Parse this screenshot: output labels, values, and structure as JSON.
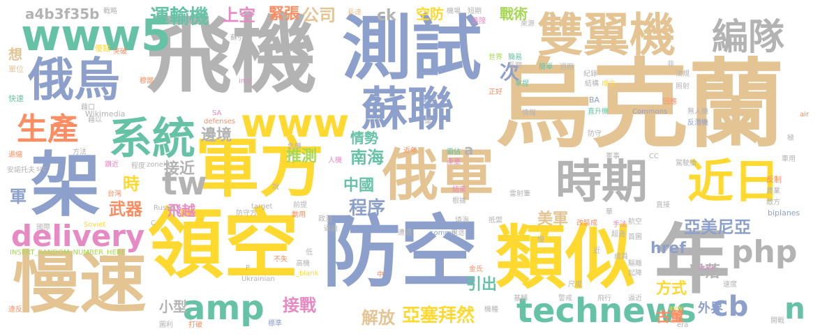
{
  "palette": {
    "green": "#66c2a5",
    "orange": "#fc8d62",
    "blue": "#8da0cb",
    "pink": "#e78ac3",
    "lime": "#a6d854",
    "yellow": "#ffd92f",
    "tan": "#e5c494",
    "gray": "#b3b3b3"
  },
  "words": [
    {
      "text": "飛機",
      "color": "gray"
    },
    {
      "text": "烏克蘭",
      "color": "tan"
    },
    {
      "text": "測試",
      "color": "blue"
    },
    {
      "text": "領空",
      "color": "yellow"
    },
    {
      "text": "防空",
      "color": "blue"
    },
    {
      "text": "類似",
      "color": "yellow"
    },
    {
      "text": "慢速",
      "color": "tan"
    },
    {
      "text": "軍方",
      "color": "yellow"
    },
    {
      "text": "俄軍",
      "color": "tan"
    },
    {
      "text": "年",
      "color": "gray"
    },
    {
      "text": "雙翼機",
      "color": "tan"
    },
    {
      "text": "俄烏",
      "color": "blue"
    },
    {
      "text": "www5",
      "color": "green"
    },
    {
      "text": "蘇聯",
      "color": "blue"
    },
    {
      "text": "架",
      "color": "blue"
    },
    {
      "text": "時期",
      "color": "gray"
    },
    {
      "text": "編隊",
      "color": "gray"
    },
    {
      "text": "系統",
      "color": "green"
    },
    {
      "text": "近日",
      "color": "yellow"
    },
    {
      "text": "www",
      "color": "yellow"
    },
    {
      "text": "tw",
      "color": "gray"
    },
    {
      "text": "生產",
      "color": "orange"
    },
    {
      "text": "technews",
      "color": "green"
    },
    {
      "text": "amp",
      "color": "green"
    },
    {
      "text": "delivery",
      "color": "pink"
    },
    {
      "text": "php",
      "color": "gray"
    },
    {
      "text": "cb",
      "color": "blue"
    },
    {
      "text": "n",
      "color": "green"
    },
    {
      "text": "運輸機",
      "color": "green"
    },
    {
      "text": "上空",
      "color": "pink"
    },
    {
      "text": "緊張",
      "color": "orange"
    },
    {
      "text": "公司",
      "color": "tan"
    },
    {
      "text": "ck",
      "color": "gray"
    },
    {
      "text": "a4b3f35b",
      "color": "gray"
    },
    {
      "text": "空防",
      "color": "yellow"
    },
    {
      "text": "戰術",
      "color": "lime"
    },
    {
      "text": "次",
      "color": "blue"
    },
    {
      "text": "邊境",
      "color": "gray"
    },
    {
      "text": "情勢",
      "color": "green"
    },
    {
      "text": "南海",
      "color": "green"
    },
    {
      "text": "推測",
      "color": "lime"
    },
    {
      "text": "接近",
      "color": "gray"
    },
    {
      "text": "時",
      "color": "yellow"
    },
    {
      "text": "中國",
      "color": "green"
    },
    {
      "text": "程序",
      "color": "blue"
    },
    {
      "text": "武器",
      "color": "orange"
    },
    {
      "text": "飛越",
      "color": "pink"
    },
    {
      "text": "美軍",
      "color": "tan"
    },
    {
      "text": "亞美尼亞",
      "color": "blue"
    },
    {
      "text": "href",
      "color": "blue"
    },
    {
      "text": "擊落",
      "color": "gray"
    },
    {
      "text": "方式",
      "color": "yellow"
    },
    {
      "text": "小型",
      "color": "gray"
    },
    {
      "text": "接戰",
      "color": "pink"
    },
    {
      "text": "引出",
      "color": "green"
    },
    {
      "text": "解放",
      "color": "tan"
    },
    {
      "text": "亞塞拜然",
      "color": "yellow"
    },
    {
      "text": "古董",
      "color": "orange"
    },
    {
      "text": "外界",
      "color": "blue"
    },
    {
      "text": "軍",
      "color": "blue"
    },
    {
      "text": "a",
      "color": "gray"
    },
    {
      "text": "想",
      "color": "tan"
    },
    {
      "text": "Wikimedia",
      "color": "gray"
    },
    {
      "text": "defenses",
      "color": "orange"
    },
    {
      "text": "Commons",
      "color": "blue"
    },
    {
      "text": "biplanes",
      "color": "blue"
    },
    {
      "text": "Russia",
      "color": "gray"
    },
    {
      "text": "target",
      "color": "gray"
    },
    {
      "text": "Soviet",
      "color": "yellow"
    },
    {
      "text": "Ukrainian",
      "color": "gray"
    },
    {
      "text": "INSERT_RANDOM_NUMBER_HERE",
      "color": "lime"
    },
    {
      "text": "_blank",
      "color": "yellow"
    },
    {
      "text": "zoneid",
      "color": "gray"
    },
    {
      "text": "src",
      "color": "gray"
    },
    {
      "text": "img",
      "color": "pink"
    },
    {
      "text": "commo",
      "color": "blue"
    },
    {
      "text": "draw",
      "color": "pink"
    },
    {
      "text": "avw",
      "color": "yellow"
    },
    {
      "text": "era",
      "color": "gray"
    },
    {
      "text": "air",
      "color": "orange"
    },
    {
      "text": "BA",
      "color": "blue"
    },
    {
      "text": "CC",
      "color": "gray"
    },
    {
      "text": "SA",
      "color": "pink"
    },
    {
      "text": "戰略",
      "color": "gray"
    },
    {
      "text": "優點",
      "color": "yellow"
    },
    {
      "text": "單位",
      "color": "tan"
    },
    {
      "text": "快速",
      "color": "green"
    },
    {
      "text": "穆部",
      "color": "orange"
    },
    {
      "text": "藉以",
      "color": "gray"
    },
    {
      "text": "藉口",
      "color": "gray"
    },
    {
      "text": "突破",
      "color": "orange"
    },
    {
      "text": "長達",
      "color": "tan"
    },
    {
      "text": "機場",
      "color": "gray"
    },
    {
      "text": "短期",
      "color": "gray"
    },
    {
      "text": "造隍",
      "color": "pink"
    },
    {
      "text": "來源",
      "color": "gray"
    },
    {
      "text": "世界",
      "color": "lime"
    },
    {
      "text": "簡易",
      "color": "green"
    },
    {
      "text": "長期",
      "color": "gray"
    },
    {
      "text": "簡單",
      "color": "green"
    },
    {
      "text": "週期",
      "color": "gray"
    },
    {
      "text": "紀錄",
      "color": "gray"
    },
    {
      "text": "法規",
      "color": "gray"
    },
    {
      "text": "照射",
      "color": "gray"
    },
    {
      "text": "成立",
      "color": "yellow"
    },
    {
      "text": "結構",
      "color": "gray"
    },
    {
      "text": "拿捏",
      "color": "green"
    },
    {
      "text": "正好",
      "color": "orange"
    },
    {
      "text": "戰爭",
      "color": "blue"
    },
    {
      "text": "情報",
      "color": "gray"
    },
    {
      "text": "直升機",
      "color": "green"
    },
    {
      "text": "回應",
      "color": "orange"
    },
    {
      "text": "無人機",
      "color": "gray"
    },
    {
      "text": "反潛機",
      "color": "blue"
    },
    {
      "text": "運",
      "color": "gray"
    },
    {
      "text": "防守",
      "color": "gray"
    },
    {
      "text": "危機",
      "color": "gray"
    },
    {
      "text": "人機",
      "color": "pink"
    },
    {
      "text": "近年",
      "color": "orange"
    },
    {
      "text": "霸佔",
      "color": "green"
    },
    {
      "text": "產量",
      "color": "pink"
    },
    {
      "text": "軍事",
      "color": "gray"
    },
    {
      "text": "駕駛艙",
      "color": "gray"
    },
    {
      "text": "車用",
      "color": "gray"
    },
    {
      "text": "反制",
      "color": "orange"
    },
    {
      "text": "敵方",
      "color": "gray"
    },
    {
      "text": "雷射筆",
      "color": "gray"
    },
    {
      "text": "結束",
      "color": "pink"
    },
    {
      "text": "根據",
      "color": "gray"
    },
    {
      "text": "抵禦",
      "color": "gray"
    },
    {
      "text": "前提",
      "color": "gray"
    },
    {
      "text": "防守方",
      "color": "gray"
    },
    {
      "text": "動用",
      "color": "orange"
    },
    {
      "text": "政治",
      "color": "gray"
    },
    {
      "text": "逼迫",
      "color": "gray"
    },
    {
      "text": "遭遇",
      "color": "gray"
    },
    {
      "text": "直接",
      "color": "gray"
    },
    {
      "text": "改裝成",
      "color": "orange"
    },
    {
      "text": "手法",
      "color": "pink"
    },
    {
      "text": "超過",
      "color": "gray"
    },
    {
      "text": "航空",
      "color": "gray"
    },
    {
      "text": "首圖",
      "color": "gray"
    },
    {
      "text": "成員",
      "color": "gray"
    },
    {
      "text": "驅離",
      "color": "gray"
    },
    {
      "text": "起降",
      "color": "gray"
    },
    {
      "text": "製造",
      "color": "gray"
    },
    {
      "text": "速度",
      "color": "gray"
    },
    {
      "text": "尺度",
      "color": "gray"
    },
    {
      "text": "基輔",
      "color": "gray"
    },
    {
      "text": "警戒",
      "color": "gray"
    },
    {
      "text": "飛行",
      "color": "gray"
    },
    {
      "text": "逼近",
      "color": "gray"
    },
    {
      "text": "開戰",
      "color": "gray"
    },
    {
      "text": "機種",
      "color": "gray"
    },
    {
      "text": "標準",
      "color": "blue"
    },
    {
      "text": "打破",
      "color": "orange"
    },
    {
      "text": "違反",
      "color": "orange"
    },
    {
      "text": "圖利",
      "color": "gray"
    },
    {
      "text": "國際",
      "color": "gray"
    },
    {
      "text": "安諾托夫",
      "color": "gray"
    },
    {
      "text": "方法",
      "color": "gray"
    },
    {
      "text": "退縮",
      "color": "orange"
    },
    {
      "text": "鑽近",
      "color": "pink"
    },
    {
      "text": "程度",
      "color": "gray"
    },
    {
      "text": "台灣",
      "color": "orange"
    },
    {
      "text": "不失",
      "color": "orange"
    },
    {
      "text": "金氏",
      "color": "orange"
    },
    {
      "text": "用途",
      "color": "gray"
    },
    {
      "text": "填海",
      "color": "gray"
    },
    {
      "text": "高機",
      "color": "gray"
    },
    {
      "text": "低",
      "color": "gray"
    },
    {
      "text": "極",
      "color": "gray"
    },
    {
      "text": "華",
      "color": "gray"
    },
    {
      "text": "農業",
      "color": "gray"
    },
    {
      "text": "非",
      "color": "gray"
    },
    {
      "text": "中",
      "color": "orange"
    },
    {
      "text": "說",
      "color": "gray"
    },
    {
      "text": "蘇引島",
      "color": "gray"
    },
    {
      "text": "P",
      "color": "gray"
    },
    {
      "text": "C",
      "color": "gray"
    },
    {
      "text": "慢",
      "color": "gray"
    },
    {
      "text": "近",
      "color": "gray"
    }
  ]
}
